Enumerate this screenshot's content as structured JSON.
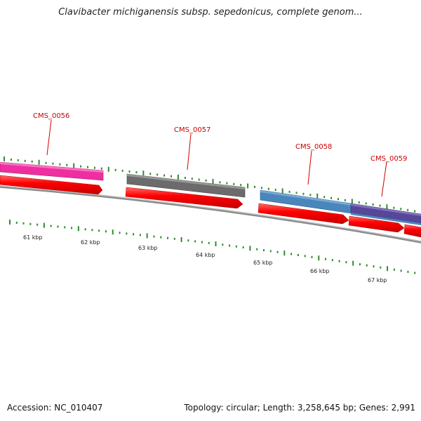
{
  "header": {
    "title": "Clavibacter michiganensis subsp. sepedonicus, complete genom..."
  },
  "footer": {
    "accession": "Accession: NC_010407",
    "summary": "Topology: circular; Length: 3,258,645 bp; Genes: 2,991"
  },
  "genes": [
    {
      "label": "CMS_0056",
      "color": "#ee2fa0"
    },
    {
      "label": "CMS_0057",
      "color": "#6b6b6b"
    },
    {
      "label": "CMS_0058",
      "color": "#4a86bb"
    },
    {
      "label": "CMS_0059",
      "color": "#56479a"
    }
  ],
  "scale_labels": [
    "61 kbp",
    "62 kbp",
    "63 kbp",
    "64 kbp",
    "65 kbp",
    "66 kbp",
    "67 kbp"
  ],
  "colors": {
    "cds_arrow": "#ff0000",
    "backbone": "#808080",
    "ticks": "#2e8b2e",
    "gene_label": "#cc0000"
  }
}
